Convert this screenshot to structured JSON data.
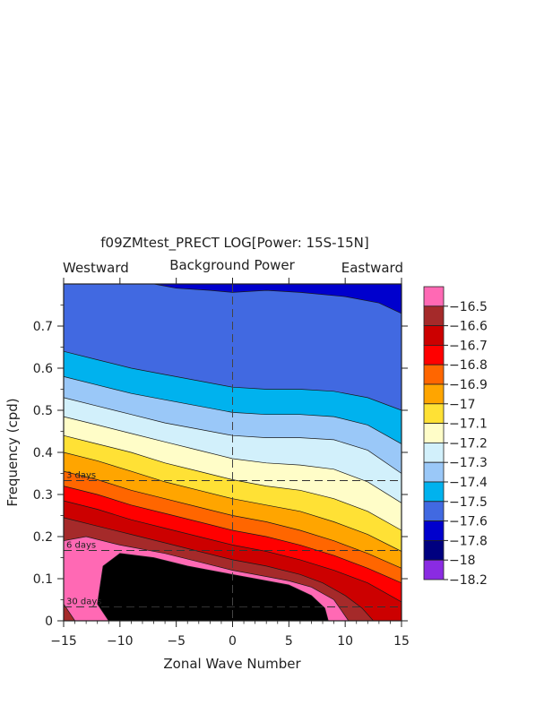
{
  "chart_data": {
    "type": "heatmap",
    "title": "f09ZMtest_PRECT LOG[Power: 15S-15N]",
    "subtitle": "Background Power",
    "left_label": "Westward",
    "right_label": "Eastward",
    "xlabel": "Zonal Wave Number",
    "ylabel": "Frequency (cpd)",
    "xlim": [
      -15,
      15
    ],
    "ylim": [
      0,
      0.8
    ],
    "x_ticks": [
      -15,
      -10,
      -5,
      0,
      5,
      10,
      15
    ],
    "y_ticks": [
      0,
      0.1,
      0.2,
      0.3,
      0.4,
      0.5,
      0.6,
      0.7
    ],
    "x_tick_labels": [
      "−15",
      "−10",
      "−5",
      "0",
      "5",
      "10",
      "15"
    ],
    "y_tick_labels": [
      "0",
      "0.1",
      "0.2",
      "0.3",
      "0.4",
      "0.5",
      "0.6",
      "0.7"
    ],
    "period_lines": [
      {
        "label": "3 days",
        "freq": 0.333
      },
      {
        "label": "6 days",
        "freq": 0.167
      },
      {
        "label": "30 days",
        "freq": 0.033
      }
    ],
    "contour_levels": [
      -18.2,
      -18,
      -17.8,
      -17.6,
      -17.5,
      -17.4,
      -17.3,
      -17.2,
      -17.1,
      -17,
      -16.9,
      -16.8,
      -16.7,
      -16.6,
      -16.5
    ],
    "colorbar_labels": [
      "−18.2",
      "−18",
      "−17.8",
      "−17.6",
      "−17.5",
      "−17.4",
      "−17.3",
      "−17.2",
      "−17.1",
      "−17",
      "−16.9",
      "−16.8",
      "−16.7",
      "−16.6",
      "−16.5"
    ],
    "colors": [
      "#8a2be2",
      "#000080",
      "#0000cd",
      "#4169e1",
      "#00b2ee",
      "#9ac8f8",
      "#d2f0fb",
      "#fffdc8",
      "#ffe135",
      "#ffa500",
      "#ff6600",
      "#ff0000",
      "#cc0000",
      "#a52a2a",
      "#ff69b4"
    ],
    "contour_boundaries": [
      {
        "level": -17.8,
        "points": [
          [
            -7,
            0.8
          ],
          [
            -5,
            0.79
          ],
          [
            -2,
            0.785
          ],
          [
            0,
            0.78
          ],
          [
            3,
            0.785
          ],
          [
            6,
            0.78
          ],
          [
            10,
            0.77
          ],
          [
            13,
            0.755
          ],
          [
            15,
            0.73
          ]
        ]
      },
      {
        "level": -17.6,
        "points": [
          [
            -15,
            0.64
          ],
          [
            -12,
            0.62
          ],
          [
            -9,
            0.6
          ],
          [
            -6,
            0.585
          ],
          [
            -3,
            0.57
          ],
          [
            0,
            0.555
          ],
          [
            3,
            0.55
          ],
          [
            6,
            0.55
          ],
          [
            9,
            0.545
          ],
          [
            12,
            0.53
          ],
          [
            15,
            0.5
          ]
        ]
      },
      {
        "level": -17.5,
        "points": [
          [
            -15,
            0.58
          ],
          [
            -12,
            0.56
          ],
          [
            -9,
            0.54
          ],
          [
            -6,
            0.525
          ],
          [
            -3,
            0.51
          ],
          [
            0,
            0.495
          ],
          [
            3,
            0.49
          ],
          [
            6,
            0.49
          ],
          [
            9,
            0.485
          ],
          [
            12,
            0.465
          ],
          [
            15,
            0.42
          ]
        ]
      },
      {
        "level": -17.4,
        "points": [
          [
            -15,
            0.53
          ],
          [
            -12,
            0.51
          ],
          [
            -9,
            0.49
          ],
          [
            -6,
            0.47
          ],
          [
            -3,
            0.455
          ],
          [
            0,
            0.44
          ],
          [
            3,
            0.435
          ],
          [
            6,
            0.435
          ],
          [
            9,
            0.43
          ],
          [
            12,
            0.405
          ],
          [
            15,
            0.35
          ]
        ]
      },
      {
        "level": -17.3,
        "points": [
          [
            -15,
            0.485
          ],
          [
            -12,
            0.465
          ],
          [
            -9,
            0.445
          ],
          [
            -6,
            0.425
          ],
          [
            -3,
            0.405
          ],
          [
            0,
            0.385
          ],
          [
            3,
            0.375
          ],
          [
            6,
            0.37
          ],
          [
            9,
            0.36
          ],
          [
            12,
            0.33
          ],
          [
            15,
            0.28
          ]
        ]
      },
      {
        "level": -17.2,
        "points": [
          [
            -15,
            0.44
          ],
          [
            -12,
            0.42
          ],
          [
            -9,
            0.4
          ],
          [
            -6,
            0.375
          ],
          [
            -3,
            0.355
          ],
          [
            0,
            0.335
          ],
          [
            3,
            0.32
          ],
          [
            6,
            0.31
          ],
          [
            9,
            0.29
          ],
          [
            12,
            0.26
          ],
          [
            15,
            0.215
          ]
        ]
      },
      {
        "level": -17.1,
        "points": [
          [
            -15,
            0.4
          ],
          [
            -12,
            0.38
          ],
          [
            -9,
            0.355
          ],
          [
            -6,
            0.33
          ],
          [
            -3,
            0.31
          ],
          [
            0,
            0.29
          ],
          [
            3,
            0.275
          ],
          [
            6,
            0.26
          ],
          [
            9,
            0.235
          ],
          [
            12,
            0.205
          ],
          [
            15,
            0.165
          ]
        ]
      },
      {
        "level": -17,
        "points": [
          [
            -15,
            0.355
          ],
          [
            -12,
            0.335
          ],
          [
            -9,
            0.31
          ],
          [
            -6,
            0.29
          ],
          [
            -3,
            0.27
          ],
          [
            0,
            0.25
          ],
          [
            3,
            0.235
          ],
          [
            6,
            0.215
          ],
          [
            9,
            0.19
          ],
          [
            12,
            0.16
          ],
          [
            15,
            0.125
          ]
        ]
      },
      {
        "level": -16.9,
        "points": [
          [
            -15,
            0.32
          ],
          [
            -12,
            0.3
          ],
          [
            -9,
            0.275
          ],
          [
            -6,
            0.255
          ],
          [
            -3,
            0.235
          ],
          [
            0,
            0.215
          ],
          [
            3,
            0.2
          ],
          [
            6,
            0.18
          ],
          [
            9,
            0.155
          ],
          [
            12,
            0.125
          ],
          [
            15,
            0.09
          ]
        ]
      },
      {
        "level": -16.8,
        "points": [
          [
            -15,
            0.285
          ],
          [
            -12,
            0.265
          ],
          [
            -9,
            0.24
          ],
          [
            -6,
            0.22
          ],
          [
            -3,
            0.2
          ],
          [
            0,
            0.18
          ],
          [
            3,
            0.165
          ],
          [
            6,
            0.145
          ],
          [
            9,
            0.12
          ],
          [
            12,
            0.09
          ],
          [
            14,
            0.06
          ],
          [
            15,
            0.045
          ]
        ]
      },
      {
        "level": -16.7,
        "points": [
          [
            -15,
            0.245
          ],
          [
            -12,
            0.225
          ],
          [
            -9,
            0.205
          ],
          [
            -6,
            0.185
          ],
          [
            -3,
            0.165
          ],
          [
            0,
            0.145
          ],
          [
            3,
            0.13
          ],
          [
            6,
            0.11
          ],
          [
            8,
            0.09
          ],
          [
            10,
            0.06
          ],
          [
            11.5,
            0.03
          ],
          [
            12.5,
            0
          ]
        ]
      },
      {
        "level": -16.6,
        "points": [
          [
            -14,
            0
          ],
          [
            -15,
            0.04
          ],
          [
            -15,
            0.19
          ],
          [
            -13,
            0.2
          ],
          [
            -10,
            0.18
          ],
          [
            -6,
            0.16
          ],
          [
            -3,
            0.14
          ],
          [
            0,
            0.12
          ],
          [
            3,
            0.105
          ],
          [
            5,
            0.095
          ],
          [
            7,
            0.08
          ],
          [
            9,
            0.05
          ],
          [
            10.3,
            0
          ]
        ]
      },
      {
        "level": -16.5,
        "points": [
          [
            -11,
            0
          ],
          [
            -12,
            0.04
          ],
          [
            -11.5,
            0.13
          ],
          [
            -10,
            0.16
          ],
          [
            -7,
            0.15
          ],
          [
            -4,
            0.13
          ],
          [
            -1,
            0.115
          ],
          [
            2,
            0.1
          ],
          [
            5,
            0.085
          ],
          [
            7,
            0.06
          ],
          [
            8.2,
            0.03
          ],
          [
            8.5,
            0
          ]
        ]
      }
    ]
  }
}
